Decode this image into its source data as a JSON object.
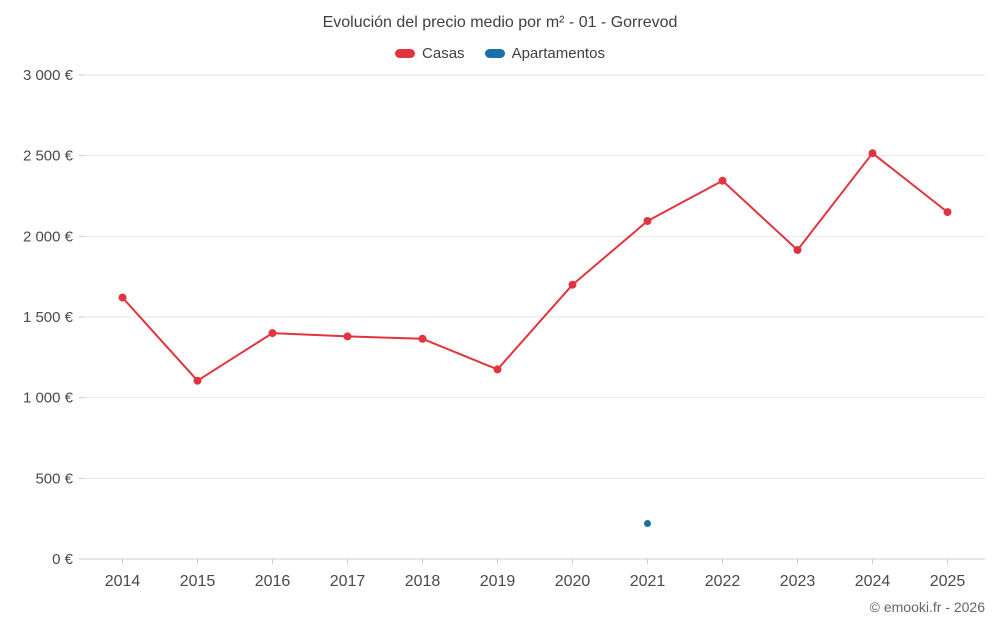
{
  "chart": {
    "title": "Evolución del precio medio por m² - 01 - Gorrevod",
    "footer": "© emooki.fr - 2026"
  },
  "legend": {
    "items": [
      {
        "label": "Casas",
        "color": "#e0353e"
      },
      {
        "label": "Apartamentos",
        "color": "#1a6fa8"
      }
    ]
  },
  "chart_data": {
    "type": "line",
    "title": "Evolución del precio medio por m² - 01 - Gorrevod",
    "x": [
      2014,
      2015,
      2016,
      2017,
      2018,
      2019,
      2020,
      2021,
      2022,
      2023,
      2024,
      2025
    ],
    "series": [
      {
        "name": "Casas",
        "color": "#e0353e",
        "marker_radius": 4,
        "values": [
          1620,
          1105,
          1400,
          1380,
          1365,
          1175,
          1700,
          2095,
          2345,
          1915,
          2515,
          2150
        ]
      },
      {
        "name": "Apartamentos",
        "color": "#1a6fa8",
        "marker_radius": 3.5,
        "values": [
          null,
          null,
          null,
          null,
          null,
          null,
          null,
          220,
          null,
          null,
          null,
          null
        ]
      }
    ],
    "ylabel": "",
    "xlabel": "",
    "ylim": [
      0,
      3000
    ],
    "ytick_step": 500,
    "y_tick_labels": [
      "0 €",
      "500 €",
      "1 000 €",
      "1 500 €",
      "2 000 €",
      "2 500 €",
      "3 000 €"
    ],
    "grid": "horizontal",
    "legend_position": "top",
    "currency": "€"
  }
}
